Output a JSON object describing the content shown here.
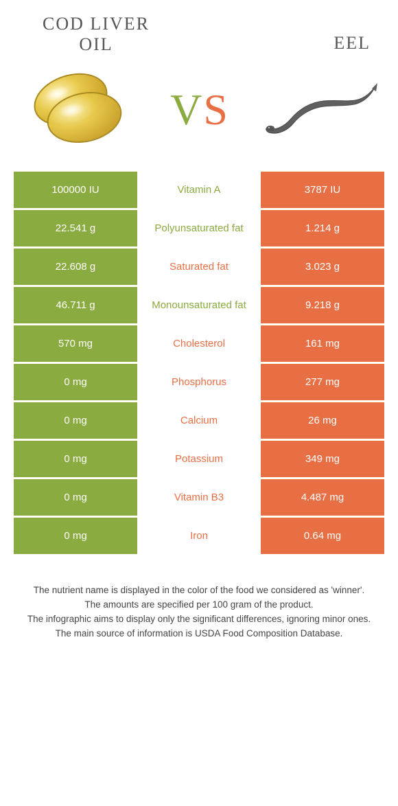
{
  "header": {
    "left_title_line1": "Cod liver",
    "left_title_line2": "oil",
    "right_title": "Eel"
  },
  "vs": {
    "v": "V",
    "s": "S"
  },
  "colors": {
    "green": "#8aab3f",
    "orange": "#e86f44",
    "capsule_light": "#e8c94a",
    "capsule_dark": "#b18f20",
    "eel": "#6a6a6a",
    "background": "#ffffff"
  },
  "table": {
    "left_bg": "#8aab3f",
    "right_bg": "#e86f44",
    "rows": [
      {
        "left": "100000 IU",
        "label": "Vitamin A",
        "right": "3787 IU",
        "winner": "green"
      },
      {
        "left": "22.541 g",
        "label": "Polyunsaturated fat",
        "right": "1.214 g",
        "winner": "green"
      },
      {
        "left": "22.608 g",
        "label": "Saturated fat",
        "right": "3.023 g",
        "winner": "orange"
      },
      {
        "left": "46.711 g",
        "label": "Monounsaturated fat",
        "right": "9.218 g",
        "winner": "green"
      },
      {
        "left": "570 mg",
        "label": "Cholesterol",
        "right": "161 mg",
        "winner": "orange"
      },
      {
        "left": "0 mg",
        "label": "Phosphorus",
        "right": "277 mg",
        "winner": "orange"
      },
      {
        "left": "0 mg",
        "label": "Calcium",
        "right": "26 mg",
        "winner": "orange"
      },
      {
        "left": "0 mg",
        "label": "Potassium",
        "right": "349 mg",
        "winner": "orange"
      },
      {
        "left": "0 mg",
        "label": "Vitamin B3",
        "right": "4.487 mg",
        "winner": "orange"
      },
      {
        "left": "0 mg",
        "label": "Iron",
        "right": "0.64 mg",
        "winner": "orange"
      }
    ]
  },
  "footer": {
    "line1": "The nutrient name is displayed in the color of the food we considered as 'winner'.",
    "line2": "The amounts are specified per 100 gram of the product.",
    "line3": "The infographic aims to display only the significant differences, ignoring minor ones.",
    "line4": "The main source of information is USDA Food Composition Database."
  }
}
